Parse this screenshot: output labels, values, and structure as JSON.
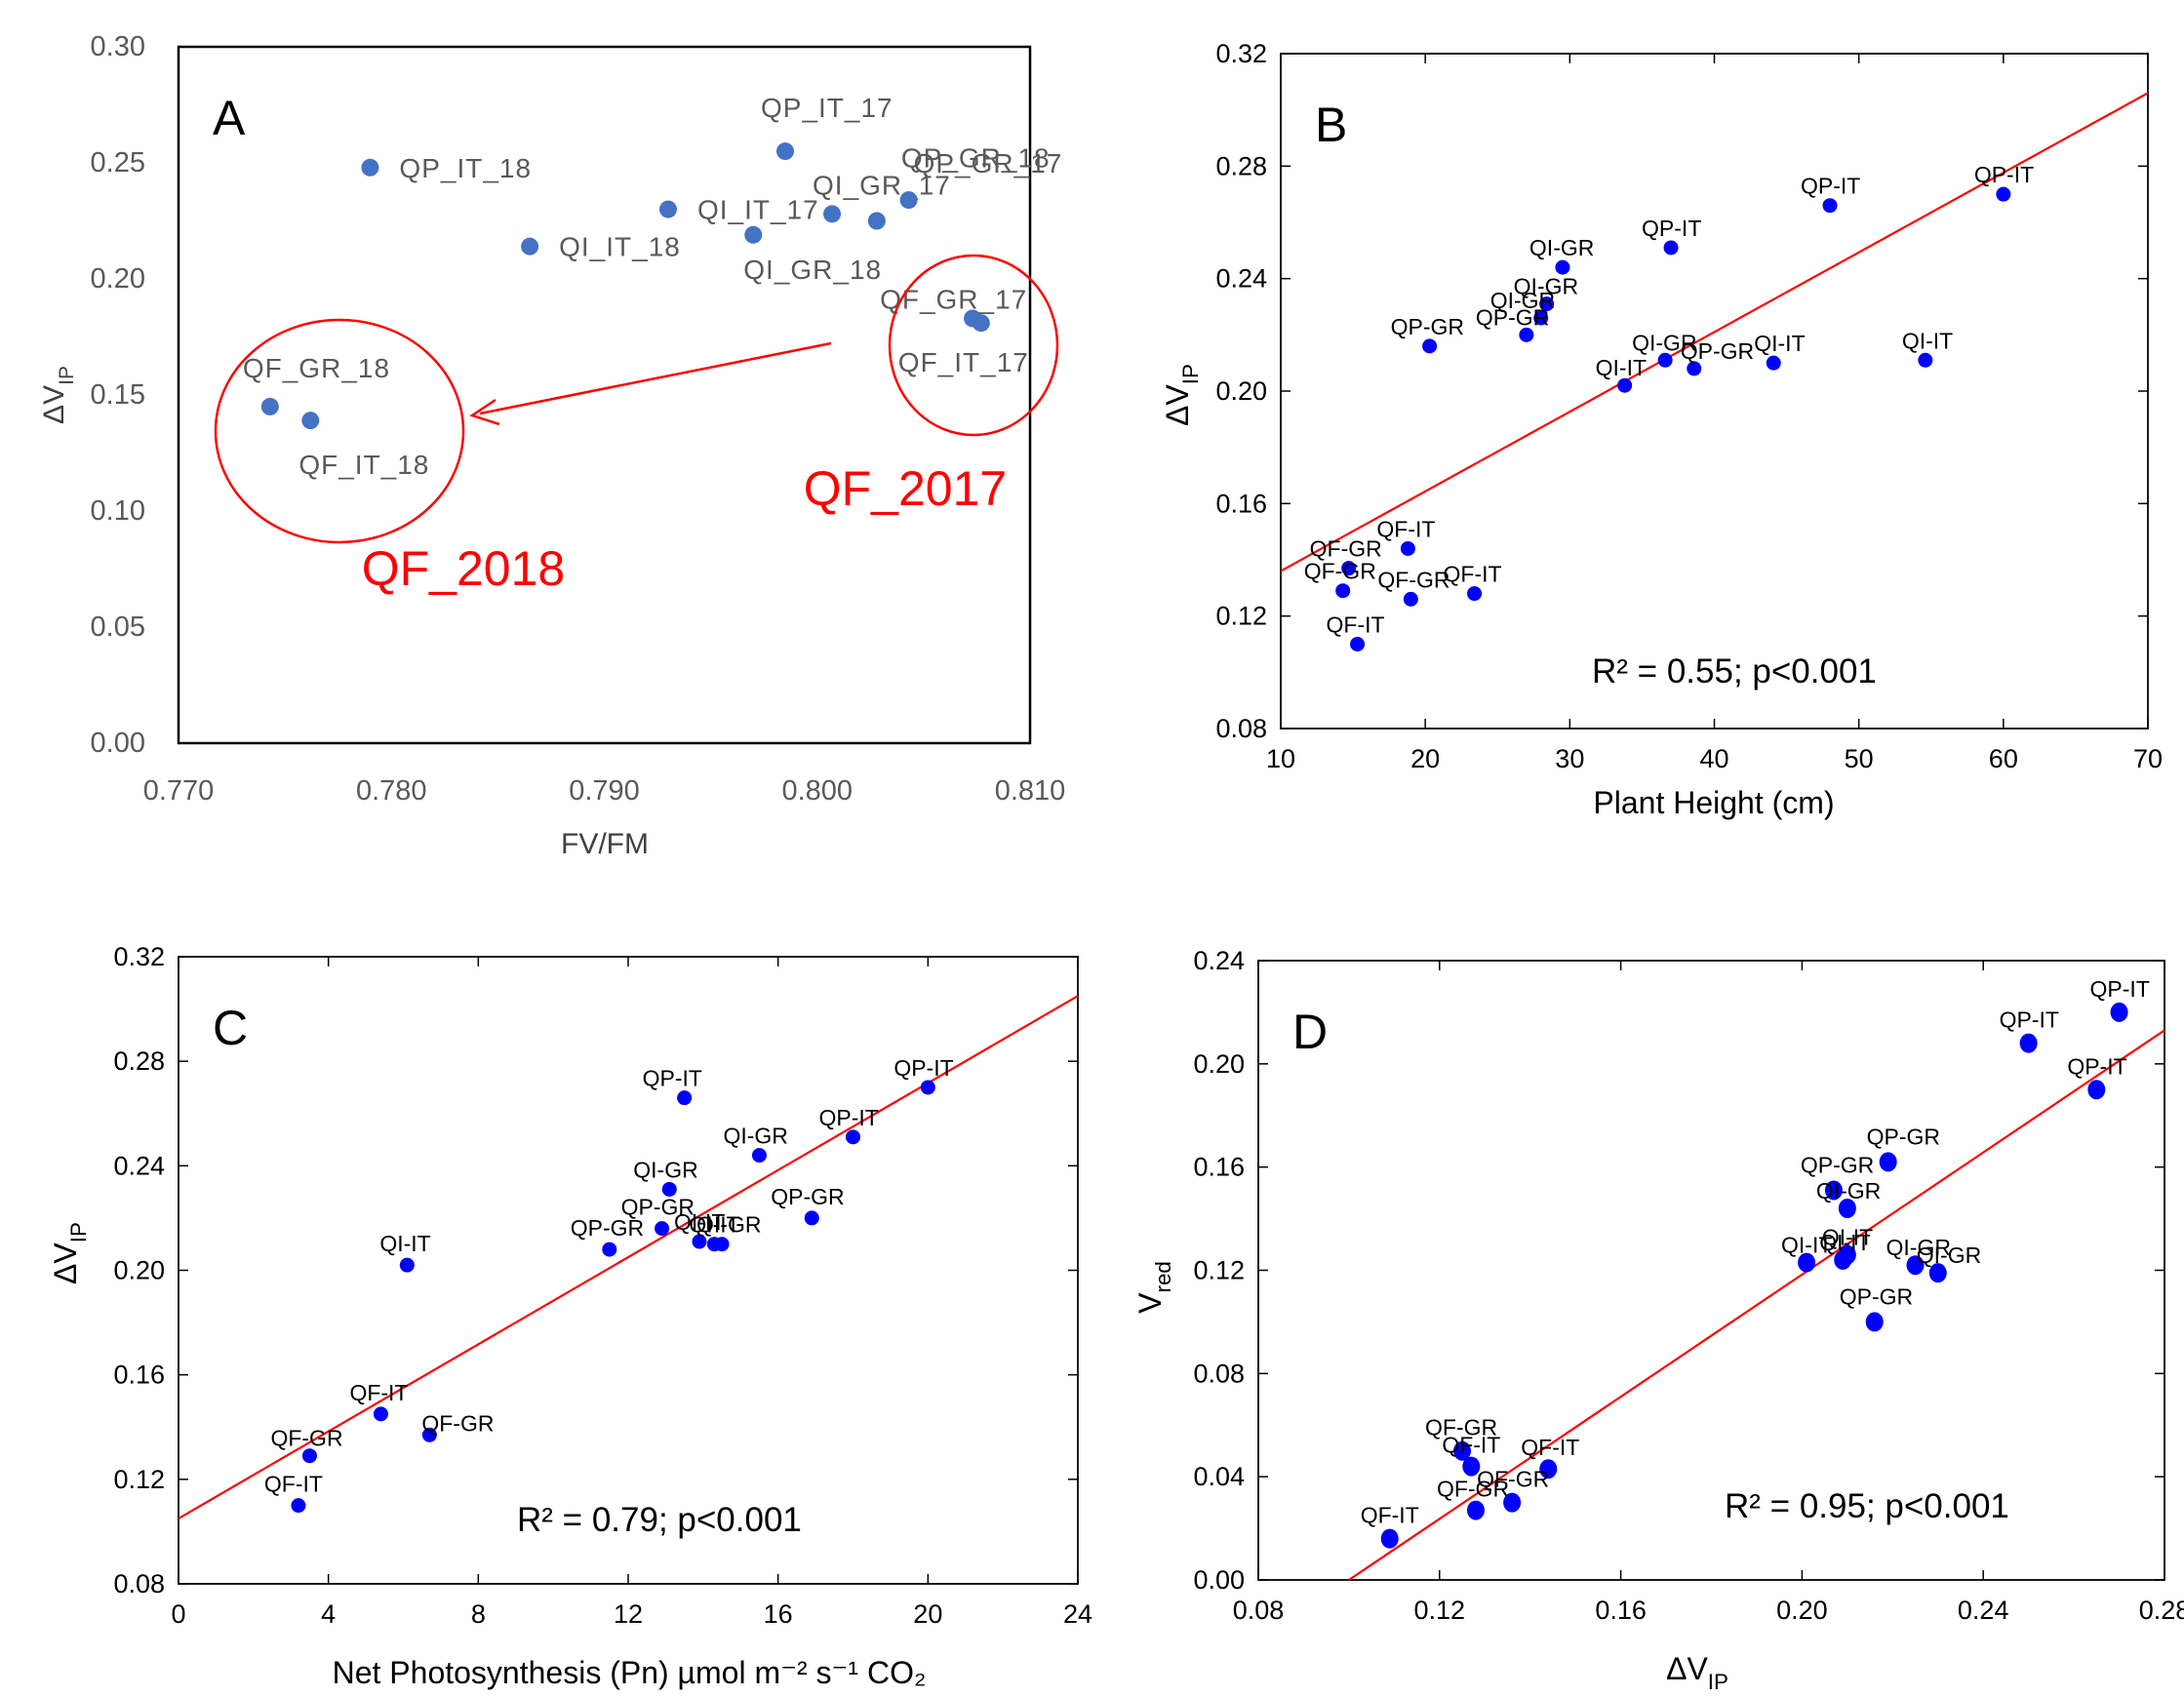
{
  "chart_data": [
    {
      "panel": "A",
      "type": "scatter",
      "xlabel": "FV/FM",
      "ylabel": "ΔV_IP",
      "xlim": [
        0.77,
        0.81
      ],
      "ylim": [
        0.0,
        0.3
      ],
      "xticks": [
        "0.770",
        "0.780",
        "0.790",
        "0.800",
        "0.810"
      ],
      "yticks": [
        "0.00",
        "0.05",
        "0.10",
        "0.15",
        "0.20",
        "0.25",
        "0.30"
      ],
      "grid": false,
      "marker_color": "#4472c4",
      "points": [
        {
          "label": "QP_IT_18",
          "x": 0.779,
          "y": 0.248
        },
        {
          "label": "QI_IT_18",
          "x": 0.7865,
          "y": 0.214
        },
        {
          "label": "QI_IT_17",
          "x": 0.793,
          "y": 0.23
        },
        {
          "label": "QI_GR_18",
          "x": 0.797,
          "y": 0.219
        },
        {
          "label": "QP_IT_17",
          "x": 0.7985,
          "y": 0.255
        },
        {
          "label": "QI_GR_17",
          "x": 0.8007,
          "y": 0.228
        },
        {
          "label": "QP_GR_18",
          "x": 0.8028,
          "y": 0.225
        },
        {
          "label": "QP_GR_17",
          "x": 0.8043,
          "y": 0.234
        },
        {
          "label": "QF_GR_17",
          "x": 0.8073,
          "y": 0.183
        },
        {
          "label": "QF_IT_17",
          "x": 0.8077,
          "y": 0.181
        },
        {
          "label": "QF_GR_18",
          "x": 0.7743,
          "y": 0.145
        },
        {
          "label": "QF_IT_18",
          "x": 0.7762,
          "y": 0.139
        }
      ],
      "annotations": [
        "QF_2018",
        "QF_2017"
      ]
    },
    {
      "panel": "B",
      "type": "scatter",
      "xlabel": "Plant Height (cm)",
      "ylabel": "ΔV_IP",
      "xlim": [
        10,
        70
      ],
      "ylim": [
        0.08,
        0.32
      ],
      "xticks": [
        "10",
        "20",
        "30",
        "40",
        "50",
        "60",
        "70"
      ],
      "yticks": [
        "0.08",
        "0.12",
        "0.16",
        "0.20",
        "0.24",
        "0.28",
        "0.32"
      ],
      "grid": false,
      "marker_color": "#0000ff",
      "fit_line": {
        "color": "#ff0000",
        "x": [
          10,
          70
        ],
        "y": [
          0.136,
          0.306
        ]
      },
      "stats": "R² = 0.55; p<0.001",
      "points": [
        {
          "label": "QP-IT",
          "x": 60,
          "y": 0.27
        },
        {
          "label": "QP-IT",
          "x": 48,
          "y": 0.266
        },
        {
          "label": "QP-IT",
          "x": 37,
          "y": 0.251
        },
        {
          "label": "QI-GR",
          "x": 29.5,
          "y": 0.244
        },
        {
          "label": "QI-GR",
          "x": 28.4,
          "y": 0.231
        },
        {
          "label": "QI-GR",
          "x": 28.0,
          "y": 0.226
        },
        {
          "label": "QP-GR",
          "x": 27.0,
          "y": 0.22
        },
        {
          "label": "QP-GR",
          "x": 20.3,
          "y": 0.216
        },
        {
          "label": "QI-GR",
          "x": 36.6,
          "y": 0.211
        },
        {
          "label": "QP-GR",
          "x": 38.6,
          "y": 0.208
        },
        {
          "label": "QI-IT",
          "x": 33.8,
          "y": 0.202
        },
        {
          "label": "QI-IT",
          "x": 44.1,
          "y": 0.21
        },
        {
          "label": "QI-IT",
          "x": 54.6,
          "y": 0.211
        },
        {
          "label": "QF-IT",
          "x": 18.8,
          "y": 0.144
        },
        {
          "label": "QF-GR",
          "x": 14.7,
          "y": 0.137
        },
        {
          "label": "QF-GR",
          "x": 14.3,
          "y": 0.129
        },
        {
          "label": "QF-GR",
          "x": 19.0,
          "y": 0.126
        },
        {
          "label": "QF-IT",
          "x": 23.4,
          "y": 0.128
        },
        {
          "label": "QF-IT",
          "x": 15.3,
          "y": 0.11
        }
      ]
    },
    {
      "panel": "C",
      "type": "scatter",
      "xlabel": "Net Photosynthesis (Pn)  µmol m⁻² s⁻¹ CO₂",
      "ylabel": "ΔV_IP",
      "xlim": [
        0,
        24
      ],
      "ylim": [
        0.08,
        0.32
      ],
      "xticks": [
        "0",
        "4",
        "8",
        "12",
        "16",
        "20",
        "24"
      ],
      "yticks": [
        "0.08",
        "0.12",
        "0.16",
        "0.20",
        "0.24",
        "0.28",
        "0.32"
      ],
      "grid": false,
      "marker_color": "#0000ff",
      "fit_line": {
        "color": "#ff0000",
        "x": [
          0,
          24
        ],
        "y": [
          0.105,
          0.305
        ]
      },
      "stats": "R² = 0.79; p<0.001",
      "points": [
        {
          "label": "QP-IT",
          "x": 20.0,
          "y": 0.27
        },
        {
          "label": "QP-IT",
          "x": 13.5,
          "y": 0.266
        },
        {
          "label": "QP-IT",
          "x": 18.0,
          "y": 0.251
        },
        {
          "label": "QI-GR",
          "x": 15.5,
          "y": 0.244
        },
        {
          "label": "QI-GR",
          "x": 13.1,
          "y": 0.231
        },
        {
          "label": "QP-GR",
          "x": 16.9,
          "y": 0.22
        },
        {
          "label": "QP-GR",
          "x": 12.9,
          "y": 0.216
        },
        {
          "label": "QP-GR",
          "x": 11.5,
          "y": 0.208
        },
        {
          "label": "QI-IT",
          "x": 13.9,
          "y": 0.211
        },
        {
          "label": "QI-GR",
          "x": 14.5,
          "y": 0.21
        },
        {
          "label": "QI-IT",
          "x": 14.3,
          "y": 0.21
        },
        {
          "label": "QI-IT",
          "x": 6.1,
          "y": 0.202
        },
        {
          "label": "QF-IT",
          "x": 5.4,
          "y": 0.145
        },
        {
          "label": "QF-GR",
          "x": 6.7,
          "y": 0.137
        },
        {
          "label": "QF-GR",
          "x": 3.5,
          "y": 0.129
        },
        {
          "label": "QF-IT",
          "x": 3.2,
          "y": 0.11
        }
      ]
    },
    {
      "panel": "D",
      "type": "scatter",
      "xlabel": "ΔV_IP",
      "ylabel": "V_red",
      "xlim": [
        0.08,
        0.28
      ],
      "ylim": [
        0.0,
        0.24
      ],
      "xticks": [
        "0.08",
        "0.12",
        "0.16",
        "0.20",
        "0.24",
        "0.28"
      ],
      "yticks": [
        "0.00",
        "0.04",
        "0.08",
        "0.12",
        "0.16",
        "0.20",
        "0.24"
      ],
      "grid": false,
      "marker_color": "#0000ff",
      "fit_line": {
        "color": "#ff0000",
        "x": [
          0.1,
          0.28
        ],
        "y": [
          0.0,
          0.213
        ]
      },
      "stats": "R² = 0.95; p<0.001",
      "points": [
        {
          "label": "QP-IT",
          "x": 0.27,
          "y": 0.22
        },
        {
          "label": "QP-IT",
          "x": 0.25,
          "y": 0.208
        },
        {
          "label": "QP-IT",
          "x": 0.265,
          "y": 0.19
        },
        {
          "label": "QP-GR",
          "x": 0.219,
          "y": 0.162
        },
        {
          "label": "QP-GR",
          "x": 0.207,
          "y": 0.151
        },
        {
          "label": "QI-GR",
          "x": 0.21,
          "y": 0.144
        },
        {
          "label": "QI-IT",
          "x": 0.21,
          "y": 0.126
        },
        {
          "label": "QI-IT",
          "x": 0.209,
          "y": 0.124
        },
        {
          "label": "QI-IT",
          "x": 0.201,
          "y": 0.123
        },
        {
          "label": "QI-GR",
          "x": 0.225,
          "y": 0.122
        },
        {
          "label": "QI-GR",
          "x": 0.23,
          "y": 0.119
        },
        {
          "label": "QP-GR",
          "x": 0.216,
          "y": 0.1
        },
        {
          "label": "QF-GR",
          "x": 0.125,
          "y": 0.05
        },
        {
          "label": "QF-IT",
          "x": 0.127,
          "y": 0.044
        },
        {
          "label": "QF-IT",
          "x": 0.144,
          "y": 0.043
        },
        {
          "label": "QF-GR",
          "x": 0.128,
          "y": 0.027
        },
        {
          "label": "QF-GR",
          "x": 0.136,
          "y": 0.03
        },
        {
          "label": "QF-IT",
          "x": 0.109,
          "y": 0.016
        }
      ]
    }
  ]
}
